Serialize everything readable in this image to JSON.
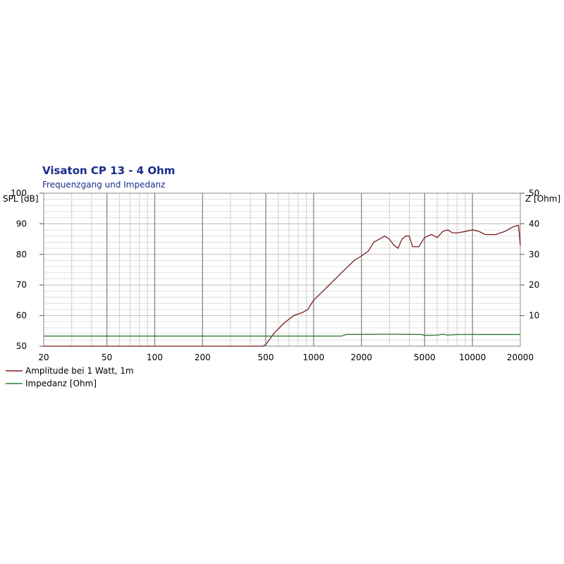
{
  "chart_data": {
    "type": "line",
    "title": "Visaton CP 13 - 4 Ohm",
    "subtitle": "Frequenzgang und Impedanz",
    "ylabel_left": "SPL [dB]",
    "ylabel_right": "Z [Ohm]",
    "x_scale": "log",
    "xlim": [
      20,
      20000
    ],
    "x_ticks": [
      20,
      50,
      100,
      200,
      500,
      1000,
      2000,
      5000,
      10000,
      20000
    ],
    "ylim_left": [
      50,
      100
    ],
    "y_ticks_left": [
      50,
      60,
      70,
      80,
      90,
      100
    ],
    "ylim_right": [
      0,
      50
    ],
    "y_ticks_right": [
      10,
      20,
      30,
      40,
      50
    ],
    "grid": true,
    "legend_position": "bottom-left",
    "series": [
      {
        "name": "Amplitude bei 1 Watt, 1m",
        "axis": "left",
        "color": "#7a1f1f",
        "points": [
          [
            20,
            50
          ],
          [
            100,
            50
          ],
          [
            300,
            50
          ],
          [
            480,
            50
          ],
          [
            500,
            50.5
          ],
          [
            560,
            54
          ],
          [
            650,
            57.5
          ],
          [
            750,
            60
          ],
          [
            850,
            61
          ],
          [
            920,
            62
          ],
          [
            1000,
            65
          ],
          [
            1200,
            69
          ],
          [
            1500,
            74
          ],
          [
            1800,
            78
          ],
          [
            2000,
            79.5
          ],
          [
            2200,
            81
          ],
          [
            2400,
            84
          ],
          [
            2600,
            85
          ],
          [
            2800,
            86
          ],
          [
            3000,
            85
          ],
          [
            3200,
            83
          ],
          [
            3400,
            82
          ],
          [
            3600,
            85
          ],
          [
            3800,
            86
          ],
          [
            4000,
            86
          ],
          [
            4200,
            82.5
          ],
          [
            4600,
            82.5
          ],
          [
            5000,
            85.5
          ],
          [
            5500,
            86.5
          ],
          [
            6000,
            85.5
          ],
          [
            6500,
            87.5
          ],
          [
            7000,
            88
          ],
          [
            7500,
            87
          ],
          [
            8000,
            87
          ],
          [
            9000,
            87.5
          ],
          [
            10000,
            88
          ],
          [
            11000,
            87.5
          ],
          [
            12000,
            86.5
          ],
          [
            14000,
            86.5
          ],
          [
            16000,
            87.5
          ],
          [
            18000,
            89
          ],
          [
            19500,
            89.5
          ],
          [
            20000,
            83
          ]
        ]
      },
      {
        "name": "Impedanz [Ohm]",
        "axis": "right",
        "color": "#2e7d32",
        "points": [
          [
            20,
            3.3
          ],
          [
            500,
            3.3
          ],
          [
            1500,
            3.3
          ],
          [
            1600,
            3.8
          ],
          [
            3000,
            3.9
          ],
          [
            4800,
            3.8
          ],
          [
            5000,
            3.5
          ],
          [
            6000,
            3.6
          ],
          [
            6500,
            3.9
          ],
          [
            7000,
            3.6
          ],
          [
            8000,
            3.8
          ],
          [
            10000,
            3.8
          ],
          [
            20000,
            3.8
          ]
        ]
      }
    ]
  }
}
